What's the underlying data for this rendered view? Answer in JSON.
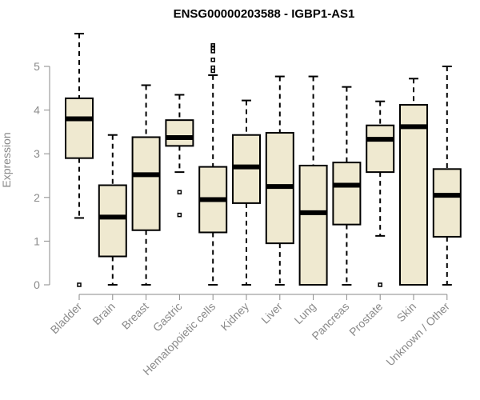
{
  "chart_data": {
    "type": "boxplot",
    "title": "ENSG00000203588 - IGBP1-AS1",
    "xlabel": "",
    "ylabel": "Expression",
    "ylim": [
      0,
      5.8
    ],
    "yticks": [
      0,
      1,
      2,
      3,
      4,
      5
    ],
    "box_color": "#efe9d0",
    "categories": [
      "Bladder",
      "Brain",
      "Breast",
      "Gastric",
      "Hematopoietic cells",
      "Kidney",
      "Liver",
      "Lung",
      "Pancreas",
      "Prostate",
      "Skin",
      "Unknown / Other"
    ],
    "boxes": [
      {
        "whisker_low": 1.53,
        "q1": 2.9,
        "median": 3.8,
        "q3": 4.27,
        "whisker_high": 5.75,
        "outliers": [
          0
        ]
      },
      {
        "whisker_low": 0,
        "q1": 0.65,
        "median": 1.55,
        "q3": 2.28,
        "whisker_high": 3.43,
        "outliers": []
      },
      {
        "whisker_low": 0,
        "q1": 1.25,
        "median": 2.52,
        "q3": 3.38,
        "whisker_high": 4.57,
        "outliers": []
      },
      {
        "whisker_low": 2.58,
        "q1": 3.18,
        "median": 3.37,
        "q3": 3.77,
        "whisker_high": 4.35,
        "outliers": [
          2.12,
          1.6
        ]
      },
      {
        "whisker_low": 0,
        "q1": 1.2,
        "median": 1.95,
        "q3": 2.7,
        "whisker_high": 4.8,
        "outliers": [
          4.9,
          4.97,
          5.15,
          5.35,
          5.43,
          5.48
        ]
      },
      {
        "whisker_low": 0,
        "q1": 1.87,
        "median": 2.7,
        "q3": 3.43,
        "whisker_high": 4.22,
        "outliers": []
      },
      {
        "whisker_low": 0,
        "q1": 0.95,
        "median": 2.25,
        "q3": 3.48,
        "whisker_high": 4.77,
        "outliers": []
      },
      {
        "whisker_low": 0,
        "q1": 0,
        "median": 1.65,
        "q3": 2.73,
        "whisker_high": 4.77,
        "outliers": []
      },
      {
        "whisker_low": 0,
        "q1": 1.38,
        "median": 2.28,
        "q3": 2.8,
        "whisker_high": 4.53,
        "outliers": []
      },
      {
        "whisker_low": 1.12,
        "q1": 2.58,
        "median": 3.33,
        "q3": 3.65,
        "whisker_high": 4.2,
        "outliers": [
          0
        ]
      },
      {
        "whisker_low": 0,
        "q1": 0,
        "median": 3.62,
        "q3": 4.12,
        "whisker_high": 4.72,
        "outliers": []
      },
      {
        "whisker_low": 0,
        "q1": 1.1,
        "median": 2.05,
        "q3": 2.65,
        "whisker_high": 5.0,
        "outliers": []
      }
    ]
  }
}
